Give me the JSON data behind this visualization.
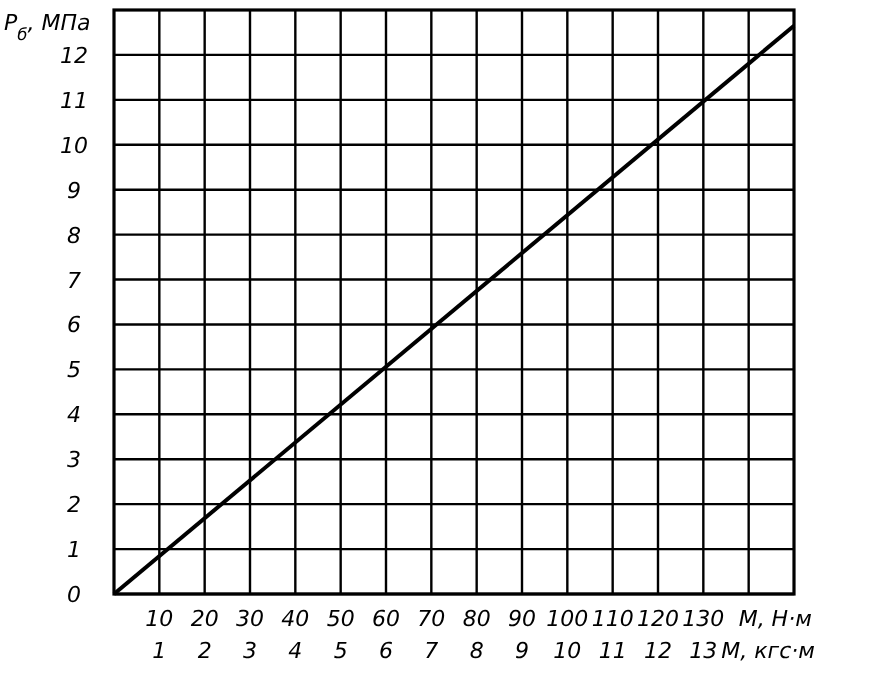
{
  "chart_data": {
    "type": "line",
    "ylabel": "P$_{б}$, МПа",
    "xlabel": "M, Н·м",
    "x2label": "M, кгс·м",
    "x": [
      0,
      150
    ],
    "series": [
      {
        "color": "#000000",
        "values": [
          0,
          12.65
        ]
      }
    ],
    "xlim": [
      0,
      150
    ],
    "xticks": [
      10,
      20,
      30,
      40,
      50,
      60,
      70,
      80,
      90,
      100,
      110,
      120,
      130,
      {
        "value": 140,
        "label": null
      }
    ],
    "x2lim": [
      0,
      15
    ],
    "x2ticks": [
      1,
      2,
      3,
      4,
      5,
      6,
      7,
      8,
      9,
      10,
      11,
      12,
      13
    ],
    "ylim": [
      0,
      13
    ],
    "yticks": [
      0,
      1,
      2,
      3,
      4,
      5,
      6,
      7,
      8,
      9,
      10,
      11,
      12
    ],
    "grid": true,
    "marker": "none",
    "line_style": "solid"
  }
}
